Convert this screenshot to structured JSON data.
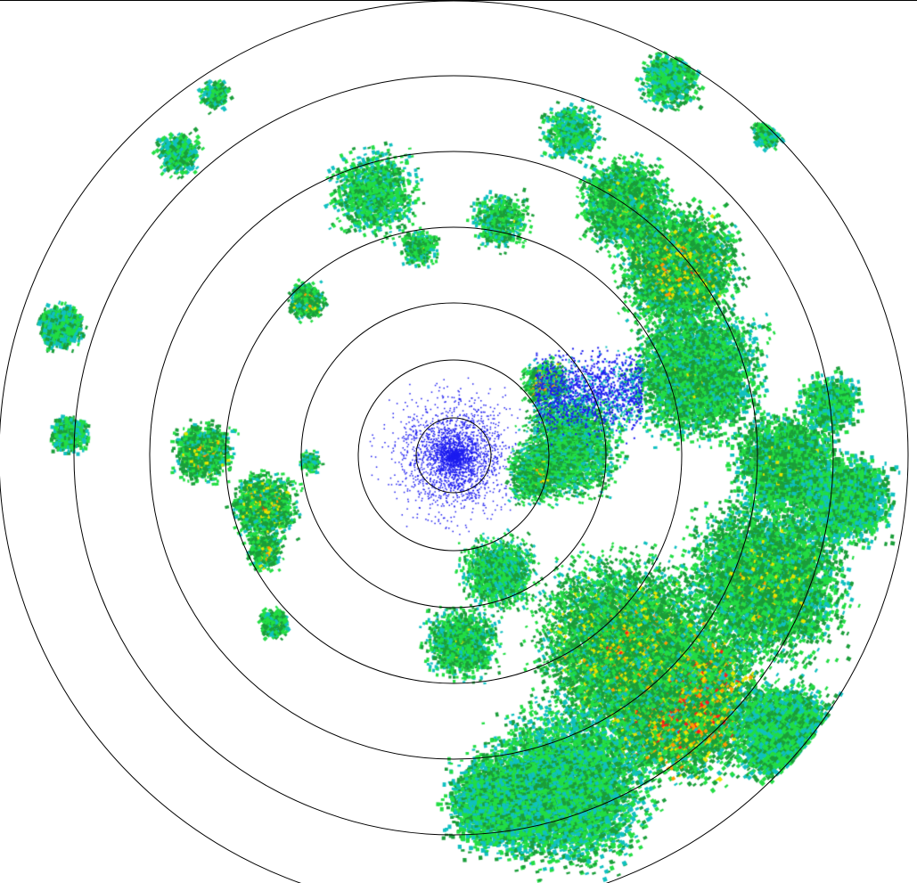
{
  "radar": {
    "palette": {
      "blue": "#1c1cf0",
      "cyan": "#10c0c0",
      "light_green": "#22dd44",
      "green": "#1a9e3a",
      "yellow": "#e6e600",
      "orange": "#ff9a00",
      "red": "#ff1a1a"
    },
    "ring_color": "#000000",
    "background": "#ffffff"
  }
}
